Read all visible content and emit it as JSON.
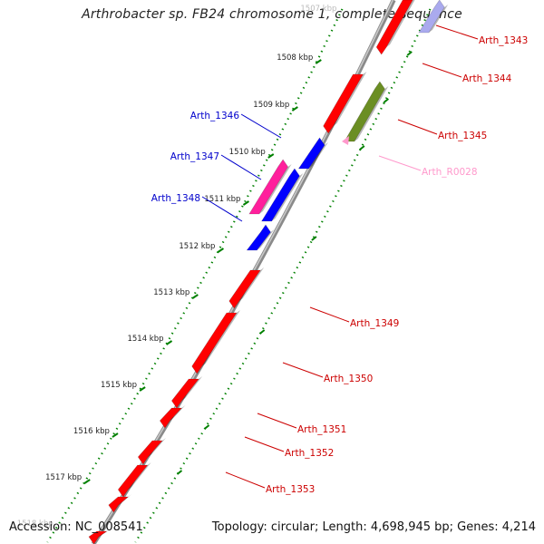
{
  "title": "Arthrobacter sp. FB24 chromosome 1, complete sequence",
  "accession": "Accession: NC_008541",
  "summary": "Topology: circular; Length: 4,698,945 bp; Genes: 4,214",
  "colors": {
    "backbone": "#8a8a8a",
    "forward_gene": "#ff0000",
    "reverse_gene_blue": "#0000ff",
    "reverse_gene_pink": "#ff1f9c",
    "rna": "#6b8e23",
    "rna_label": "#ff99cc",
    "tick_dots": "#008000",
    "label_red": "#cc0000",
    "label_blue": "#0000cc"
  },
  "ticks": [
    {
      "label": "1507 kbp",
      "faint": true
    },
    {
      "label": "1508 kbp"
    },
    {
      "label": "1509 kbp"
    },
    {
      "label": "1510 kbp"
    },
    {
      "label": "1511 kbp"
    },
    {
      "label": "1512 kbp"
    },
    {
      "label": "1513 kbp"
    },
    {
      "label": "1514 kbp"
    },
    {
      "label": "1515 kbp"
    },
    {
      "label": "1516 kbp"
    },
    {
      "label": "1517 kbp"
    },
    {
      "label": "1518 kbp",
      "faint": true
    }
  ],
  "genes": [
    {
      "label": "Arth_1343",
      "strand": "outer",
      "kind": "gene"
    },
    {
      "label": "Arth_1344",
      "strand": "outer",
      "kind": "gene"
    },
    {
      "label": "Arth_1345",
      "strand": "outer",
      "kind": "rna"
    },
    {
      "label": "Arth_R0028",
      "strand": "outer",
      "kind": "rna-label"
    },
    {
      "label": "Arth_1346",
      "strand": "inner",
      "kind": "gene"
    },
    {
      "label": "Arth_1347",
      "strand": "inner",
      "kind": "gene"
    },
    {
      "label": "Arth_1348",
      "strand": "inner",
      "kind": "gene"
    },
    {
      "label": "Arth_1349",
      "strand": "outer",
      "kind": "gene"
    },
    {
      "label": "Arth_1350",
      "strand": "outer",
      "kind": "gene"
    },
    {
      "label": "Arth_1351",
      "strand": "outer",
      "kind": "gene"
    },
    {
      "label": "Arth_1352",
      "strand": "outer",
      "kind": "gene"
    },
    {
      "label": "Arth_1353",
      "strand": "outer",
      "kind": "gene"
    }
  ]
}
